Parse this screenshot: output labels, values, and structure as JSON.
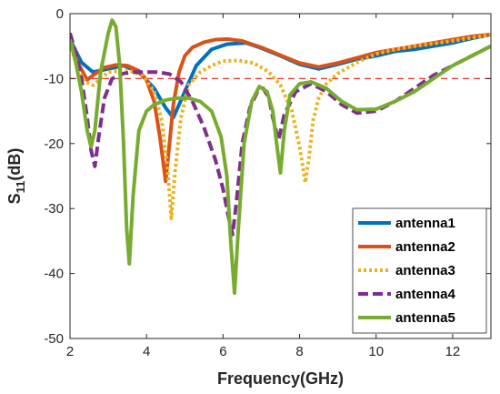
{
  "chart_data": {
    "type": "line",
    "xlabel": "Frequency(GHz)",
    "ylabel_main": "S",
    "ylabel_sub": "11",
    "ylabel_unit": "(dB)",
    "xlim": [
      2,
      13
    ],
    "ylim": [
      -50,
      0
    ],
    "xticks": [
      2,
      4,
      6,
      8,
      10,
      12
    ],
    "yticks": [
      0,
      -10,
      -20,
      -30,
      -40,
      -50
    ],
    "reference_line": {
      "y": -10,
      "color": "#e8302a",
      "style": "dashed"
    },
    "legend_position": "bottom-right",
    "series": [
      {
        "name": "antenna1",
        "color": "#0072bd",
        "dash": "solid",
        "x": [
          2,
          2.3,
          2.6,
          3.0,
          3.4,
          3.8,
          4.2,
          4.5,
          4.7,
          5.0,
          5.3,
          5.7,
          6.1,
          6.6,
          7.0,
          7.5,
          8.0,
          8.5,
          9.0,
          9.5,
          10.0,
          10.5,
          11.0,
          11.5,
          12.0,
          12.5,
          13.0
        ],
        "y": [
          -4.0,
          -7.5,
          -9.0,
          -8.5,
          -8.0,
          -9.0,
          -11.5,
          -14.5,
          -16.0,
          -12.0,
          -8.0,
          -5.5,
          -4.7,
          -4.5,
          -5.3,
          -6.5,
          -7.8,
          -8.5,
          -7.8,
          -7.0,
          -6.5,
          -5.8,
          -5.5,
          -5.0,
          -4.5,
          -3.8,
          -3.2
        ]
      },
      {
        "name": "antenna2",
        "color": "#d95319",
        "dash": "solid",
        "x": [
          2,
          2.2,
          2.45,
          2.6,
          2.9,
          3.2,
          3.5,
          3.8,
          4.0,
          4.2,
          4.35,
          4.5,
          4.6,
          4.7,
          4.85,
          5.0,
          5.2,
          5.5,
          5.8,
          6.1,
          6.5,
          7.0,
          7.5,
          8.0,
          8.5,
          9.0,
          9.5,
          10.0,
          10.5,
          11.0,
          11.5,
          12.0,
          12.5,
          13.0
        ],
        "y": [
          -4.0,
          -7.5,
          -10.2,
          -9.5,
          -8.3,
          -7.9,
          -8.0,
          -8.8,
          -10.2,
          -13.5,
          -19.0,
          -25.8,
          -20.0,
          -14.0,
          -9.0,
          -6.5,
          -5.2,
          -4.4,
          -4.0,
          -3.9,
          -4.2,
          -5.2,
          -6.4,
          -7.6,
          -8.2,
          -7.6,
          -6.8,
          -6.0,
          -5.5,
          -5.0,
          -4.5,
          -4.0,
          -3.5,
          -3.2
        ]
      },
      {
        "name": "antenna3",
        "color": "#edb120",
        "dash": "dotted",
        "x": [
          2,
          2.2,
          2.4,
          2.6,
          2.8,
          3.0,
          3.3,
          3.6,
          3.9,
          4.2,
          4.4,
          4.55,
          4.65,
          4.75,
          4.9,
          5.1,
          5.4,
          5.7,
          6.0,
          6.4,
          6.8,
          7.2,
          7.5,
          7.8,
          8.0,
          8.15,
          8.25,
          8.35,
          8.5,
          8.7,
          9.0,
          9.5,
          10.0,
          10.5,
          11.0,
          11.5,
          12.0,
          12.5,
          13.0
        ],
        "y": [
          -4.5,
          -8.5,
          -10.5,
          -11.0,
          -10.0,
          -9.0,
          -8.8,
          -8.9,
          -9.5,
          -12.0,
          -16.5,
          -24.0,
          -31.5,
          -24.0,
          -16.0,
          -11.0,
          -9.0,
          -8.0,
          -7.3,
          -7.2,
          -7.6,
          -9.0,
          -11.0,
          -15.0,
          -20.5,
          -26.0,
          -22.0,
          -16.5,
          -13.0,
          -10.8,
          -9.2,
          -7.5,
          -6.2,
          -5.5,
          -5.0,
          -4.6,
          -4.2,
          -3.7,
          -3.2
        ]
      },
      {
        "name": "antenna4",
        "color": "#7e2f8e",
        "dash": "dashed",
        "x": [
          2,
          2.15,
          2.3,
          2.45,
          2.55,
          2.65,
          2.75,
          2.9,
          3.1,
          3.4,
          3.7,
          4.0,
          4.3,
          4.6,
          4.9,
          5.2,
          5.5,
          5.8,
          6.0,
          6.15,
          6.25,
          6.35,
          6.5,
          6.7,
          6.9,
          7.05,
          7.2,
          7.3,
          7.45,
          7.6,
          7.9,
          8.3,
          8.7,
          9.1,
          9.5,
          10.0,
          10.5,
          11.0,
          11.5,
          12.0,
          12.5,
          13.0
        ],
        "y": [
          -3.0,
          -6.0,
          -10.0,
          -16.0,
          -21.0,
          -23.5,
          -19.0,
          -13.0,
          -10.0,
          -9.2,
          -9.0,
          -9.0,
          -9.0,
          -9.3,
          -10.5,
          -13.5,
          -17.5,
          -22.5,
          -27.0,
          -31.5,
          -34.0,
          -29.0,
          -20.0,
          -14.5,
          -12.0,
          -11.5,
          -13.0,
          -16.0,
          -19.5,
          -15.5,
          -12.0,
          -10.8,
          -12.0,
          -14.0,
          -15.3,
          -15.0,
          -13.5,
          -11.5,
          -9.5,
          -8.0,
          -6.5,
          -5.0
        ]
      },
      {
        "name": "antenna5",
        "color": "#77ac30",
        "dash": "solid",
        "x": [
          2,
          2.15,
          2.3,
          2.45,
          2.55,
          2.65,
          2.8,
          3.0,
          3.1,
          3.2,
          3.3,
          3.4,
          3.48,
          3.55,
          3.65,
          3.8,
          4.0,
          4.2,
          4.5,
          4.8,
          5.1,
          5.4,
          5.7,
          5.95,
          6.1,
          6.2,
          6.3,
          6.4,
          6.55,
          6.75,
          6.95,
          7.15,
          7.3,
          7.4,
          7.5,
          7.6,
          7.75,
          8.0,
          8.3,
          8.7,
          9.1,
          9.5,
          10.0,
          10.5,
          11.0,
          11.5,
          12.0,
          12.5,
          13.0
        ],
        "y": [
          -4.0,
          -7.5,
          -12.0,
          -18.0,
          -20.5,
          -18.0,
          -9.0,
          -3.0,
          -1.0,
          -2.0,
          -8.0,
          -20.0,
          -33.0,
          -38.5,
          -28.0,
          -18.0,
          -15.0,
          -14.0,
          -13.3,
          -13.0,
          -13.0,
          -13.5,
          -15.0,
          -19.0,
          -25.0,
          -35.0,
          -43.0,
          -33.0,
          -20.0,
          -13.5,
          -11.2,
          -12.0,
          -15.0,
          -20.0,
          -24.5,
          -18.0,
          -12.5,
          -10.8,
          -10.5,
          -11.5,
          -13.5,
          -14.8,
          -14.7,
          -13.5,
          -12.0,
          -10.0,
          -8.0,
          -6.5,
          -5.0
        ]
      }
    ]
  }
}
